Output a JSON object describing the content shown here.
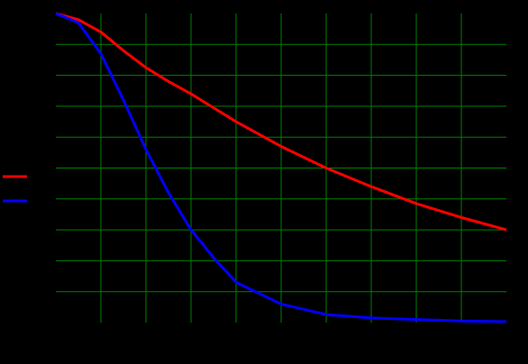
{
  "chart_data": {
    "type": "line",
    "x": [
      0,
      0.5,
      1,
      1.5,
      2,
      2.5,
      3,
      3.5,
      4,
      5,
      6,
      7,
      8,
      9,
      10
    ],
    "series": [
      {
        "color": "#ff0000",
        "values": [
          10,
          9.8,
          9.4,
          8.8,
          8.25,
          7.8,
          7.4,
          6.95,
          6.5,
          5.7,
          5.0,
          4.4,
          3.85,
          3.4,
          3.0
        ]
      },
      {
        "color": "#0000ff",
        "values": [
          10,
          9.7,
          8.7,
          7.2,
          5.6,
          4.2,
          3.0,
          2.1,
          1.3,
          0.6,
          0.26,
          0.15,
          0.1,
          0.05,
          0.03
        ]
      }
    ],
    "xlim": [
      0,
      10
    ],
    "ylim": [
      0,
      10
    ],
    "xticks": [
      1,
      2,
      3,
      4,
      5,
      6,
      7,
      8,
      9
    ],
    "yticks": [
      1,
      2,
      3,
      4,
      5,
      6,
      7,
      8,
      9
    ],
    "grid": true,
    "grid_color": "#008000",
    "background": "#000000",
    "legend": "left"
  }
}
